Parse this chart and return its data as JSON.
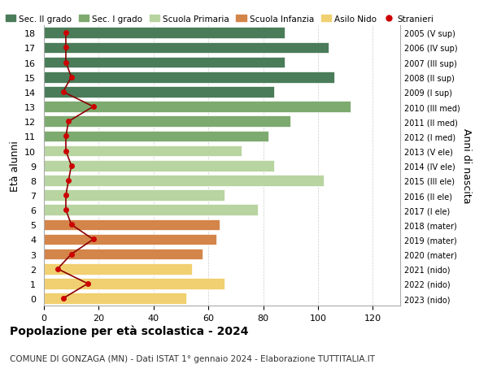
{
  "ages": [
    18,
    17,
    16,
    15,
    14,
    13,
    12,
    11,
    10,
    9,
    8,
    7,
    6,
    5,
    4,
    3,
    2,
    1,
    0
  ],
  "right_labels": [
    "2005 (V sup)",
    "2006 (IV sup)",
    "2007 (III sup)",
    "2008 (II sup)",
    "2009 (I sup)",
    "2010 (III med)",
    "2011 (II med)",
    "2012 (I med)",
    "2013 (V ele)",
    "2014 (IV ele)",
    "2015 (III ele)",
    "2016 (II ele)",
    "2017 (I ele)",
    "2018 (mater)",
    "2019 (mater)",
    "2020 (mater)",
    "2021 (nido)",
    "2022 (nido)",
    "2023 (nido)"
  ],
  "bar_values": [
    88,
    104,
    88,
    106,
    84,
    112,
    90,
    82,
    72,
    84,
    102,
    66,
    78,
    64,
    63,
    58,
    54,
    66,
    52
  ],
  "bar_colors": [
    "#4a7c59",
    "#4a7c59",
    "#4a7c59",
    "#4a7c59",
    "#4a7c59",
    "#7daa6f",
    "#7daa6f",
    "#7daa6f",
    "#b8d4a0",
    "#b8d4a0",
    "#b8d4a0",
    "#b8d4a0",
    "#b8d4a0",
    "#d4854a",
    "#d4854a",
    "#d4854a",
    "#f0d070",
    "#f0d070",
    "#f0d070"
  ],
  "stranieri_values": [
    8,
    8,
    8,
    10,
    7,
    18,
    9,
    8,
    8,
    10,
    9,
    8,
    8,
    10,
    18,
    10,
    5,
    16,
    7
  ],
  "stranieri_x": [
    8,
    8,
    8,
    10,
    7,
    18,
    9,
    8,
    8,
    10,
    9,
    8,
    8,
    10,
    18,
    10,
    5,
    16,
    7
  ],
  "legend_labels": [
    "Sec. II grado",
    "Sec. I grado",
    "Scuola Primaria",
    "Scuola Infanzia",
    "Asilo Nido",
    "Stranieri"
  ],
  "legend_colors": [
    "#4a7c59",
    "#7daa6f",
    "#b8d4a0",
    "#d4854a",
    "#f0d070",
    "#cc0000"
  ],
  "xlabel": "",
  "ylabel_left": "Età alunni",
  "ylabel_right": "Anni di nascita",
  "title_bold": "Popolazione per età scolastica - 2024",
  "subtitle": "COMUNE DI GONZAGA (MN) - Dati ISTAT 1° gennaio 2024 - Elaborazione TUTTITALIA.IT",
  "xlim": [
    0,
    130
  ],
  "xticks": [
    0,
    20,
    40,
    60,
    80,
    100,
    120
  ],
  "bg_color": "#ffffff",
  "bar_color_sec2": "#4a7c59",
  "bar_color_sec1": "#7daa6f",
  "bar_color_prim": "#b8d4a0",
  "bar_color_inf": "#d4854a",
  "bar_color_nido": "#f0d070",
  "stranieri_color": "#cc0000",
  "stranieri_line_color": "#8b0000"
}
